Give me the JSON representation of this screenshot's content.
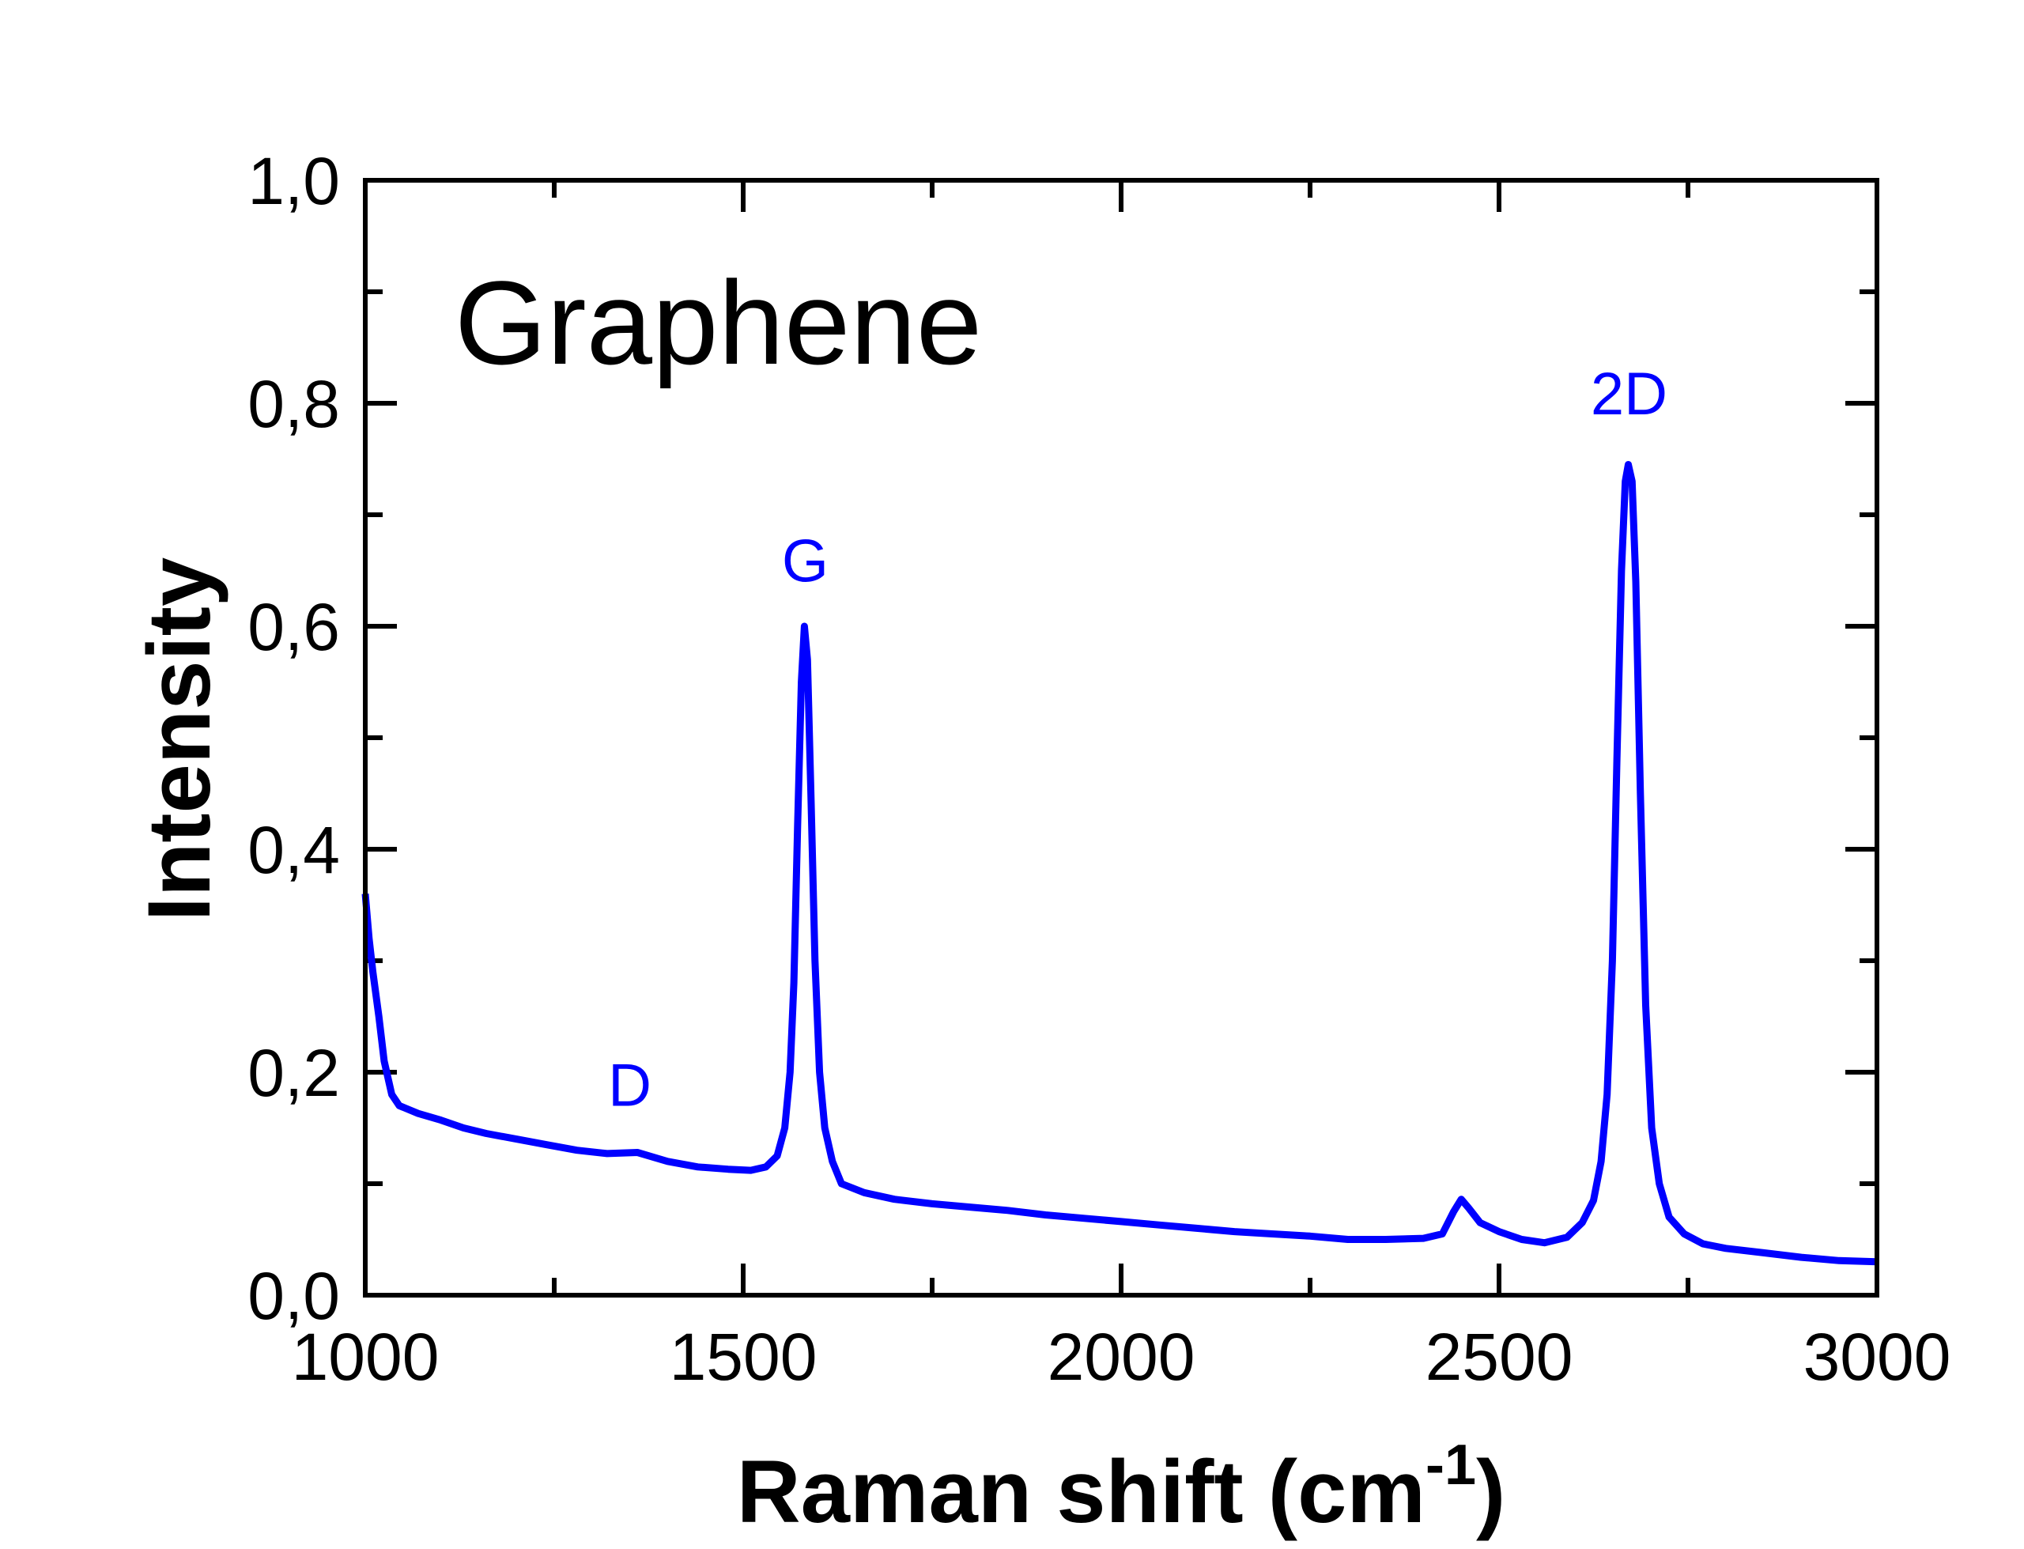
{
  "chart_data": {
    "type": "line",
    "title": "",
    "annotation_main": "Graphene",
    "xlabel": "Raman shift (cm",
    "xlabel_sup": "-1",
    "xlabel_close": ")",
    "ylabel": "Intensity",
    "xlim": [
      1000,
      3000
    ],
    "ylim": [
      0,
      1.0
    ],
    "xticks": [
      1000,
      1500,
      2000,
      2500,
      3000
    ],
    "xtick_labels": [
      "1000",
      "1500",
      "2000",
      "2500",
      "3000"
    ],
    "yticks": [
      0,
      0.2,
      0.4,
      0.6,
      0.8,
      1.0
    ],
    "ytick_labels": [
      "0,0",
      "0,2",
      "0,4",
      "0,6",
      "0,8",
      "1,0"
    ],
    "grid": false,
    "line_color": "#0000ff",
    "peak_labels": [
      {
        "text": "D",
        "x": 1350,
        "y": 0.17
      },
      {
        "text": "G",
        "x": 1582,
        "y": 0.64
      },
      {
        "text": "2D",
        "x": 2672,
        "y": 0.79
      }
    ],
    "series": [
      {
        "points": [
          [
            1000,
            0.36
          ],
          [
            1005,
            0.32
          ],
          [
            1010,
            0.29
          ],
          [
            1018,
            0.25
          ],
          [
            1025,
            0.21
          ],
          [
            1035,
            0.18
          ],
          [
            1045,
            0.17
          ],
          [
            1070,
            0.163
          ],
          [
            1100,
            0.157
          ],
          [
            1130,
            0.15
          ],
          [
            1160,
            0.145
          ],
          [
            1200,
            0.14
          ],
          [
            1240,
            0.135
          ],
          [
            1280,
            0.13
          ],
          [
            1320,
            0.127
          ],
          [
            1360,
            0.128
          ],
          [
            1400,
            0.12
          ],
          [
            1440,
            0.115
          ],
          [
            1480,
            0.113
          ],
          [
            1510,
            0.112
          ],
          [
            1530,
            0.115
          ],
          [
            1545,
            0.125
          ],
          [
            1555,
            0.15
          ],
          [
            1562,
            0.2
          ],
          [
            1567,
            0.28
          ],
          [
            1572,
            0.42
          ],
          [
            1577,
            0.55
          ],
          [
            1581,
            0.6
          ],
          [
            1585,
            0.57
          ],
          [
            1590,
            0.44
          ],
          [
            1595,
            0.3
          ],
          [
            1601,
            0.2
          ],
          [
            1608,
            0.15
          ],
          [
            1618,
            0.12
          ],
          [
            1630,
            0.1
          ],
          [
            1660,
            0.092
          ],
          [
            1700,
            0.086
          ],
          [
            1750,
            0.082
          ],
          [
            1800,
            0.079
          ],
          [
            1850,
            0.076
          ],
          [
            1900,
            0.072
          ],
          [
            1950,
            0.069
          ],
          [
            2000,
            0.066
          ],
          [
            2050,
            0.063
          ],
          [
            2100,
            0.06
          ],
          [
            2150,
            0.057
          ],
          [
            2200,
            0.055
          ],
          [
            2250,
            0.053
          ],
          [
            2300,
            0.05
          ],
          [
            2350,
            0.05
          ],
          [
            2400,
            0.051
          ],
          [
            2425,
            0.055
          ],
          [
            2440,
            0.075
          ],
          [
            2450,
            0.086
          ],
          [
            2460,
            0.078
          ],
          [
            2475,
            0.065
          ],
          [
            2500,
            0.057
          ],
          [
            2530,
            0.05
          ],
          [
            2560,
            0.047
          ],
          [
            2590,
            0.052
          ],
          [
            2610,
            0.065
          ],
          [
            2625,
            0.085
          ],
          [
            2635,
            0.12
          ],
          [
            2643,
            0.18
          ],
          [
            2650,
            0.3
          ],
          [
            2656,
            0.48
          ],
          [
            2662,
            0.65
          ],
          [
            2667,
            0.73
          ],
          [
            2671,
            0.745
          ],
          [
            2676,
            0.73
          ],
          [
            2681,
            0.64
          ],
          [
            2687,
            0.45
          ],
          [
            2694,
            0.26
          ],
          [
            2702,
            0.15
          ],
          [
            2712,
            0.1
          ],
          [
            2725,
            0.07
          ],
          [
            2745,
            0.055
          ],
          [
            2770,
            0.046
          ],
          [
            2800,
            0.042
          ],
          [
            2850,
            0.038
          ],
          [
            2900,
            0.034
          ],
          [
            2950,
            0.031
          ],
          [
            3000,
            0.03
          ]
        ]
      }
    ]
  }
}
